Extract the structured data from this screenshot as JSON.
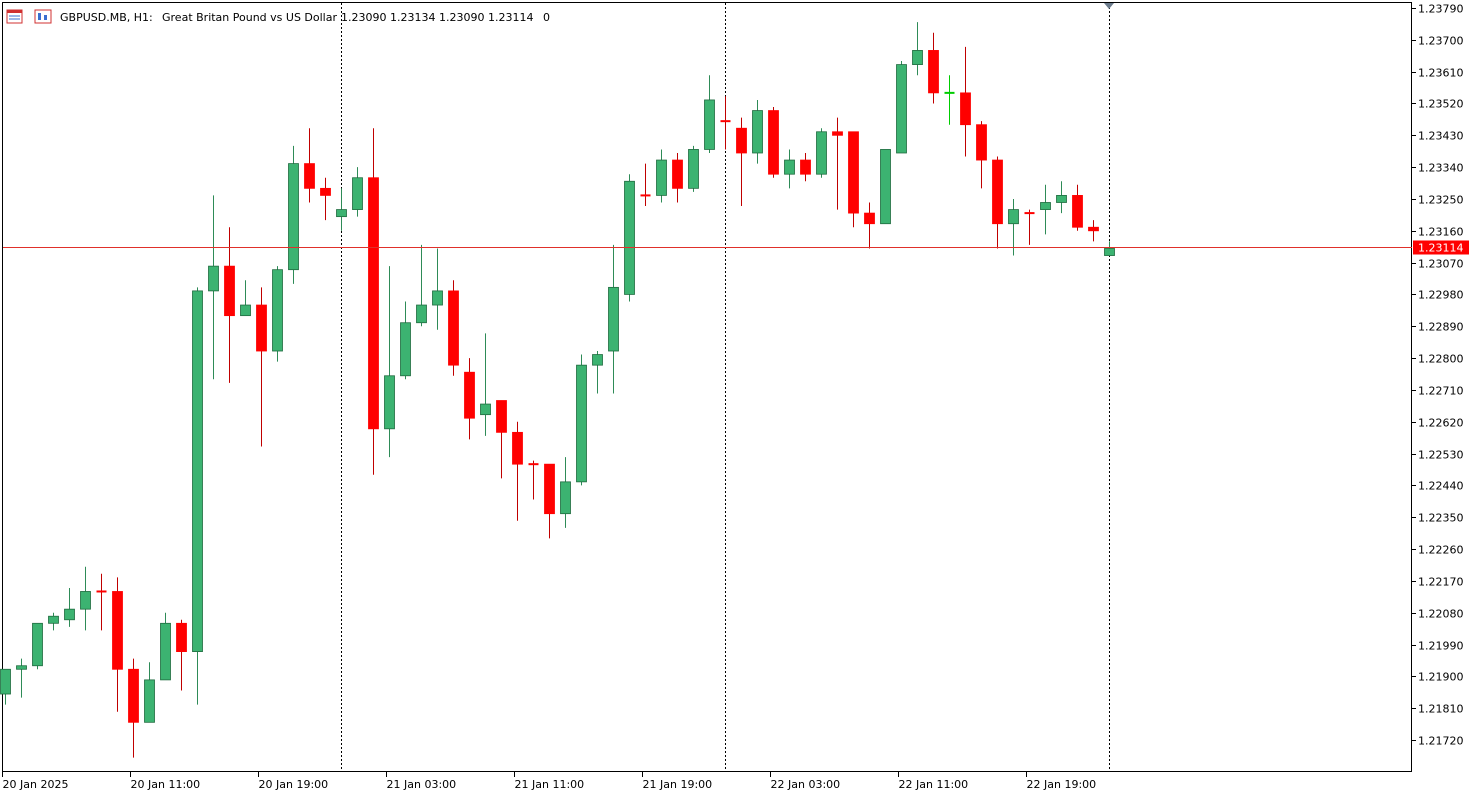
{
  "header": {
    "symbol": "GBPUSD.MB, H1:",
    "description": "Great Britan Pound vs US Dollar",
    "ohlc": "1.23090 1.23134 1.23090 1.23114",
    "volume": "0"
  },
  "price_tag": "1.23114",
  "colors": {
    "bull": "#3cb371",
    "bear": "#ff0000",
    "wick_bull": "#2e8b57",
    "wick_bear": "#c00000",
    "price_line": "#e0302a",
    "doji": "#00cc00",
    "frame": "#000000"
  },
  "icons": [
    "window-icon",
    "chart-type-icon"
  ],
  "chart_data": {
    "type": "candlestick",
    "symbol": "GBPUSD.MB",
    "timeframe": "H1",
    "ylim": [
      1.2165,
      1.2381
    ],
    "y_ticks": [
      "1.23790",
      "1.23700",
      "1.23610",
      "1.23520",
      "1.23430",
      "1.23340",
      "1.23250",
      "1.23160",
      "1.23070",
      "1.22980",
      "1.22890",
      "1.22800",
      "1.22710",
      "1.22620",
      "1.22530",
      "1.22440",
      "1.22350",
      "1.22260",
      "1.22170",
      "1.22080",
      "1.21990",
      "1.21900",
      "1.21810",
      "1.21720"
    ],
    "x_labels": [
      {
        "label": "20 Jan 2025",
        "index": 0
      },
      {
        "label": "20 Jan 11:00",
        "index": 8
      },
      {
        "label": "20 Jan 19:00",
        "index": 16
      },
      {
        "label": "21 Jan 03:00",
        "index": 24
      },
      {
        "label": "21 Jan 11:00",
        "index": 32
      },
      {
        "label": "21 Jan 19:00",
        "index": 40
      },
      {
        "label": "22 Jan 03:00",
        "index": 48
      },
      {
        "label": "22 Jan 11:00",
        "index": 56
      },
      {
        "label": "22 Jan 19:00",
        "index": 64
      }
    ],
    "separators": [
      21,
      45,
      69
    ],
    "current_price": 1.23114,
    "candles": [
      [
        1.2185,
        1.2192,
        1.2182,
        1.2192
      ],
      [
        1.2192,
        1.2195,
        1.2184,
        1.2193
      ],
      [
        1.2193,
        1.2205,
        1.2192,
        1.2205
      ],
      [
        1.2205,
        1.2208,
        1.2203,
        1.2207
      ],
      [
        1.2206,
        1.2215,
        1.2204,
        1.2209
      ],
      [
        1.2209,
        1.2221,
        1.2203,
        1.2214
      ],
      [
        1.2214,
        1.2219,
        1.2203,
        1.2214
      ],
      [
        1.2214,
        1.2218,
        1.218,
        1.2192
      ],
      [
        1.2192,
        1.2195,
        1.2167,
        1.2177
      ],
      [
        1.2177,
        1.2194,
        1.2177,
        1.2189
      ],
      [
        1.2189,
        1.2208,
        1.2189,
        1.2205
      ],
      [
        1.2205,
        1.2206,
        1.2186,
        1.2197
      ],
      [
        1.2197,
        1.23,
        1.2182,
        1.2299
      ],
      [
        1.2299,
        1.2326,
        1.2274,
        1.2306
      ],
      [
        1.2306,
        1.2317,
        1.2273,
        1.2292
      ],
      [
        1.2292,
        1.2302,
        1.2292,
        1.2295
      ],
      [
        1.2295,
        1.23,
        1.2255,
        1.2282
      ],
      [
        1.2282,
        1.2306,
        1.2279,
        1.2305
      ],
      [
        1.2305,
        1.234,
        1.2301,
        1.2335
      ],
      [
        1.2335,
        1.2345,
        1.2324,
        1.2328
      ],
      [
        1.2328,
        1.2331,
        1.2319,
        1.2326
      ],
      [
        1.232,
        1.2328,
        1.2316,
        1.2322
      ],
      [
        1.2322,
        1.2334,
        1.232,
        1.2331
      ],
      [
        1.2331,
        1.2345,
        1.2247,
        1.226
      ],
      [
        1.226,
        1.2306,
        1.2252,
        1.2275
      ],
      [
        1.2275,
        1.2296,
        1.2274,
        1.229
      ],
      [
        1.229,
        1.2312,
        1.2289,
        1.2295
      ],
      [
        1.2295,
        1.2311,
        1.2288,
        1.2299
      ],
      [
        1.2299,
        1.2302,
        1.2275,
        1.2278
      ],
      [
        1.2276,
        1.228,
        1.2257,
        1.2263
      ],
      [
        1.2264,
        1.2287,
        1.2258,
        1.2267
      ],
      [
        1.2268,
        1.2268,
        1.2246,
        1.2259
      ],
      [
        1.2259,
        1.2262,
        1.2234,
        1.225
      ],
      [
        1.225,
        1.2251,
        1.224,
        1.225
      ],
      [
        1.225,
        1.225,
        1.2229,
        1.2236
      ],
      [
        1.2236,
        1.2252,
        1.2232,
        1.2245
      ],
      [
        1.2245,
        1.2281,
        1.2244,
        1.2278
      ],
      [
        1.2278,
        1.2282,
        1.227,
        1.2281
      ],
      [
        1.2282,
        1.2312,
        1.227,
        1.23
      ],
      [
        1.2298,
        1.2332,
        1.2296,
        1.233
      ],
      [
        1.2326,
        1.2335,
        1.2323,
        1.2326
      ],
      [
        1.2326,
        1.2339,
        1.2324,
        1.2336
      ],
      [
        1.2336,
        1.2338,
        1.2324,
        1.2328
      ],
      [
        1.2328,
        1.234,
        1.2327,
        1.2339
      ],
      [
        1.2339,
        1.236,
        1.2338,
        1.2353
      ],
      [
        1.2347,
        1.2354,
        1.2339,
        1.2347
      ],
      [
        1.2345,
        1.2348,
        1.2323,
        1.2338
      ],
      [
        1.2338,
        1.2353,
        1.2335,
        1.235
      ],
      [
        1.235,
        1.2351,
        1.2331,
        1.2332
      ],
      [
        1.2332,
        1.2339,
        1.2328,
        1.2336
      ],
      [
        1.2336,
        1.2338,
        1.233,
        1.2332
      ],
      [
        1.2332,
        1.2345,
        1.2331,
        1.2344
      ],
      [
        1.2344,
        1.2348,
        1.2322,
        1.2343
      ],
      [
        1.2344,
        1.2344,
        1.2317,
        1.2321
      ],
      [
        1.2321,
        1.2324,
        1.2311,
        1.2318
      ],
      [
        1.2318,
        1.2339,
        1.2318,
        1.2339
      ],
      [
        1.2338,
        1.2364,
        1.2338,
        1.2363
      ],
      [
        1.2363,
        1.2375,
        1.236,
        1.2367
      ],
      [
        1.2367,
        1.2372,
        1.2352,
        1.2355
      ],
      [
        1.2355,
        1.236,
        1.2346,
        1.2355
      ],
      [
        1.2355,
        1.2368,
        1.2337,
        1.2346
      ],
      [
        1.2346,
        1.2347,
        1.2328,
        1.2336
      ],
      [
        1.2336,
        1.2337,
        1.2311,
        1.2318
      ],
      [
        1.2318,
        1.2325,
        1.2309,
        1.2322
      ],
      [
        1.2321,
        1.2322,
        1.2312,
        1.2321
      ],
      [
        1.2322,
        1.2329,
        1.2315,
        1.2324
      ],
      [
        1.2324,
        1.233,
        1.2321,
        1.2326
      ],
      [
        1.2326,
        1.2329,
        1.2316,
        1.2317
      ],
      [
        1.2317,
        1.2319,
        1.2313,
        1.2316
      ],
      [
        1.2309,
        1.2313,
        1.2309,
        1.2311
      ]
    ]
  }
}
